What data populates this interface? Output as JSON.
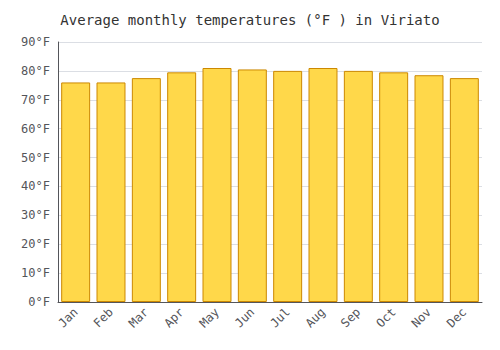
{
  "chart_data": {
    "type": "bar",
    "title": "Average monthly temperatures (°F ) in Viriato",
    "categories": [
      "Jan",
      "Feb",
      "Mar",
      "Apr",
      "May",
      "Jun",
      "Jul",
      "Aug",
      "Sep",
      "Oct",
      "Nov",
      "Dec"
    ],
    "values": [
      76,
      76,
      77.5,
      79.5,
      81,
      80.5,
      80,
      81,
      80,
      79.5,
      78.5,
      77.5
    ],
    "color": "#FFD84A",
    "ylim": [
      0,
      90
    ],
    "yticks": [
      {
        "value": 0,
        "label": "0°F"
      },
      {
        "value": 10,
        "label": "10°F"
      },
      {
        "value": 20,
        "label": "20°F"
      },
      {
        "value": 30,
        "label": "30°F"
      },
      {
        "value": 40,
        "label": "40°F"
      },
      {
        "value": 50,
        "label": "50°F"
      },
      {
        "value": 60,
        "label": "60°F"
      },
      {
        "value": 70,
        "label": "70°F"
      },
      {
        "value": 80,
        "label": "80°F"
      },
      {
        "value": 90,
        "label": "90°F"
      }
    ],
    "grid": true
  }
}
